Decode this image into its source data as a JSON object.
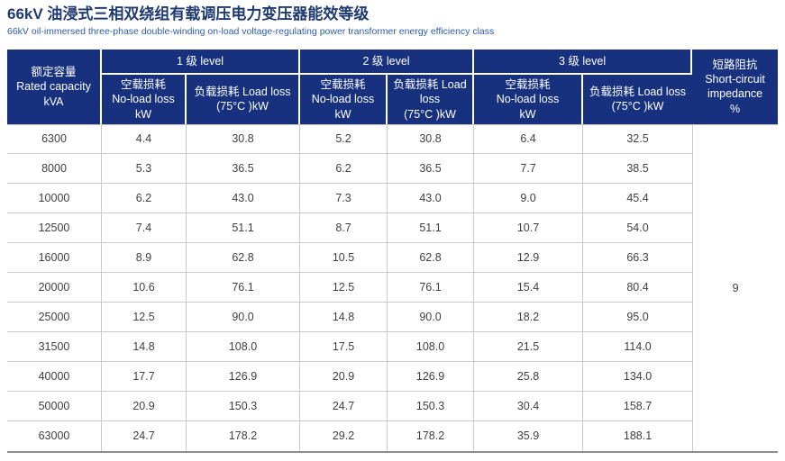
{
  "page": {
    "title": "66kV 油浸式三相双绕组有载调压电力变压器能效等级",
    "subtitle": "66kV oil-immersed three-phase double-winding on-load voltage-regulating power transformer energy efficiency class"
  },
  "colors": {
    "header_bg": "#17317f",
    "header_text": "#ffffff",
    "title_text": "#1e3a70",
    "subtitle_text": "#2a5cae",
    "body_text": "#404040",
    "row_border": "#c9c9c9",
    "table_bottom_border": "#8d8d8d"
  },
  "table": {
    "capacity_header": "额定容量\nRated capacity\nkVA",
    "groups": [
      {
        "label": "1 级 level",
        "no_load": "空载损耗\nNo-load loss\nkW",
        "load": "负载损耗 Load loss\n(75°C )kW"
      },
      {
        "label": "2 级 level",
        "no_load": "空载损耗\nNo-load loss\nkW",
        "load": "负载损耗 Load\nloss\n(75°C )kW"
      },
      {
        "label": "3 级 level",
        "no_load": "空载损耗\nNo-load loss\nkW",
        "load": "负载损耗 Load loss\n(75°C )kW"
      }
    ],
    "impedance_header": "短路阻抗\nShort-circuit\nimpedance\n%",
    "impedance_value": "9",
    "rows": [
      {
        "capacity": "6300",
        "values": [
          "4.4",
          "30.8",
          "5.2",
          "30.8",
          "6.4",
          "32.5"
        ]
      },
      {
        "capacity": "8000",
        "values": [
          "5.3",
          "36.5",
          "6.2",
          "36.5",
          "7.7",
          "38.5"
        ]
      },
      {
        "capacity": "10000",
        "values": [
          "6.2",
          "43.0",
          "7.3",
          "43.0",
          "9.0",
          "45.4"
        ]
      },
      {
        "capacity": "12500",
        "values": [
          "7.4",
          "51.1",
          "8.7",
          "51.1",
          "10.7",
          "54.0"
        ]
      },
      {
        "capacity": "16000",
        "values": [
          "8.9",
          "62.8",
          "10.5",
          "62.8",
          "12.9",
          "66.3"
        ]
      },
      {
        "capacity": "20000",
        "values": [
          "10.6",
          "76.1",
          "12.5",
          "76.1",
          "15.4",
          "80.4"
        ]
      },
      {
        "capacity": "25000",
        "values": [
          "12.5",
          "90.0",
          "14.8",
          "90.0",
          "18.2",
          "95.0"
        ]
      },
      {
        "capacity": "31500",
        "values": [
          "14.8",
          "108.0",
          "17.5",
          "108.0",
          "21.5",
          "114.0"
        ]
      },
      {
        "capacity": "40000",
        "values": [
          "17.7",
          "126.9",
          "20.9",
          "126.9",
          "25.8",
          "134.0"
        ]
      },
      {
        "capacity": "50000",
        "values": [
          "20.9",
          "150.3",
          "24.7",
          "150.3",
          "30.4",
          "158.7"
        ]
      },
      {
        "capacity": "63000",
        "values": [
          "24.7",
          "178.2",
          "29.2",
          "178.2",
          "35.9",
          "188.1"
        ]
      }
    ]
  },
  "chart_data": {
    "type": "table",
    "title": "66kV 油浸式三相双绕组有载调压电力变压器能效等级",
    "categories": [
      6300,
      8000,
      10000,
      12500,
      16000,
      20000,
      25000,
      31500,
      40000,
      50000,
      63000
    ],
    "series": [
      {
        "name": "1级 No-load loss kW",
        "values": [
          4.4,
          5.3,
          6.2,
          7.4,
          8.9,
          10.6,
          12.5,
          14.8,
          17.7,
          20.9,
          24.7
        ]
      },
      {
        "name": "1级 Load loss (75°C) kW",
        "values": [
          30.8,
          36.5,
          43.0,
          51.1,
          62.8,
          76.1,
          90.0,
          108.0,
          126.9,
          150.3,
          178.2
        ]
      },
      {
        "name": "2级 No-load loss kW",
        "values": [
          5.2,
          6.2,
          7.3,
          8.7,
          10.5,
          12.5,
          14.8,
          17.5,
          20.9,
          24.7,
          29.2
        ]
      },
      {
        "name": "2级 Load loss (75°C) kW",
        "values": [
          30.8,
          36.5,
          43.0,
          51.1,
          62.8,
          76.1,
          90.0,
          108.0,
          126.9,
          150.3,
          178.2
        ]
      },
      {
        "name": "3级 No-load loss kW",
        "values": [
          6.4,
          7.7,
          9.0,
          10.7,
          12.9,
          15.4,
          18.2,
          21.5,
          25.8,
          30.4,
          35.9
        ]
      },
      {
        "name": "3级 Load loss (75°C) kW",
        "values": [
          32.5,
          38.5,
          45.4,
          54.0,
          66.3,
          80.4,
          95.0,
          114.0,
          134.0,
          158.7,
          188.1
        ]
      },
      {
        "name": "Short-circuit impedance %",
        "values": [
          9,
          9,
          9,
          9,
          9,
          9,
          9,
          9,
          9,
          9,
          9
        ]
      }
    ]
  }
}
